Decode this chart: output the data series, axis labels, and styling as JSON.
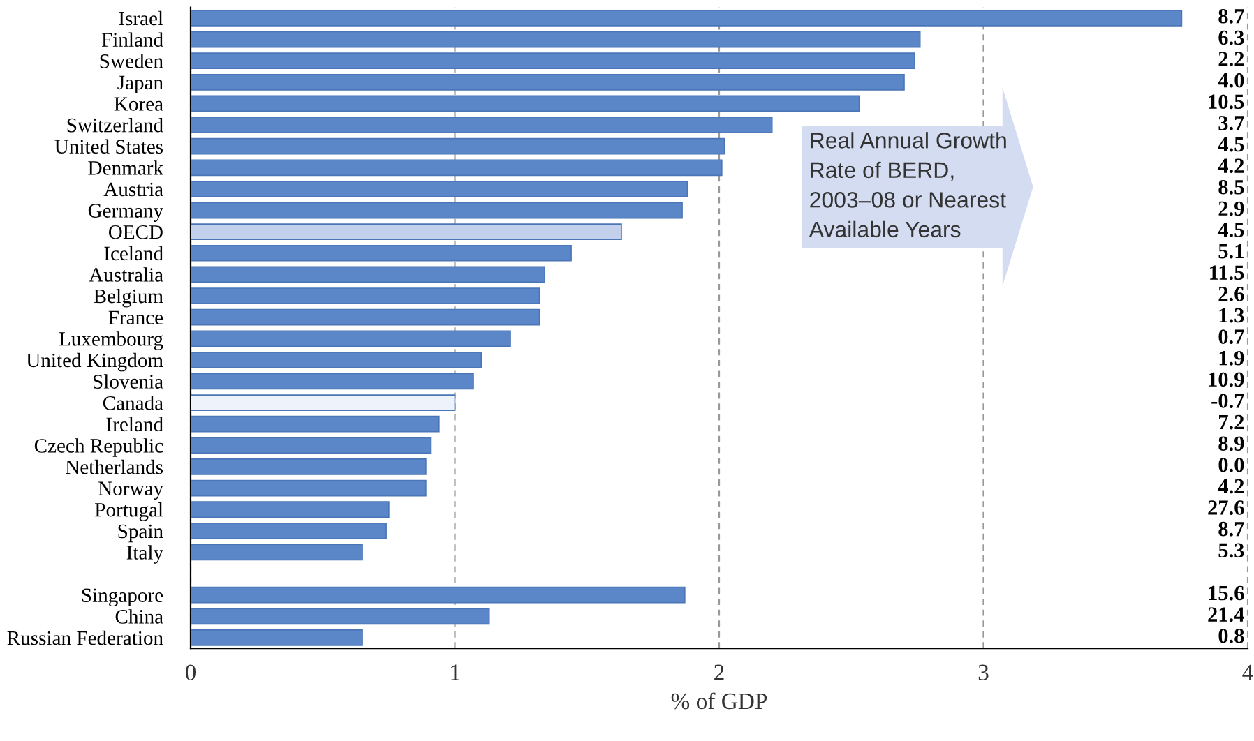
{
  "chart_data": {
    "type": "bar",
    "orientation": "horizontal",
    "xlabel": "% of GDP",
    "categories": [
      "Israel",
      "Finland",
      "Sweden",
      "Japan",
      "Korea",
      "Switzerland",
      "United States",
      "Denmark",
      "Austria",
      "Germany",
      "OECD",
      "Iceland",
      "Australia",
      "Belgium",
      "France",
      "Luxembourg",
      "United Kingdom",
      "Slovenia",
      "Canada",
      "Ireland",
      "Czech Republic",
      "Netherlands",
      "Norway",
      "Portugal",
      "Spain",
      "Italy",
      null,
      "Singapore",
      "China",
      "Russian Federation"
    ],
    "values": [
      3.75,
      2.76,
      2.74,
      2.7,
      2.53,
      2.2,
      2.02,
      2.01,
      1.88,
      1.86,
      1.63,
      1.44,
      1.34,
      1.32,
      1.32,
      1.21,
      1.1,
      1.07,
      1.0,
      0.94,
      0.91,
      0.89,
      0.89,
      0.75,
      0.74,
      0.65,
      null,
      1.87,
      1.13,
      0.65
    ],
    "colors": [
      "#5b87c8",
      "#5b87c8",
      "#5b87c8",
      "#5b87c8",
      "#5b87c8",
      "#5b87c8",
      "#5b87c8",
      "#5b87c8",
      "#5b87c8",
      "#5b87c8",
      "#c3d0ec",
      "#5b87c8",
      "#5b87c8",
      "#5b87c8",
      "#5b87c8",
      "#5b87c8",
      "#5b87c8",
      "#5b87c8",
      "#eef2fa",
      "#5b87c8",
      "#5b87c8",
      "#5b87c8",
      "#5b87c8",
      "#5b87c8",
      "#5b87c8",
      "#5b87c8",
      null,
      "#5b87c8",
      "#5b87c8",
      "#5b87c8"
    ],
    "xlim": [
      0,
      4
    ],
    "xticks": [
      0,
      1,
      2,
      3,
      4
    ],
    "grid": "x",
    "annotations": [
      "Real Annual Growth\nRate of BERD,\n2003–08 or Nearest\nAvailable Years",
      "8.7",
      "6.3",
      "2.2",
      "4.0",
      "10.5",
      "3.7",
      "4.5",
      "4.2",
      "8.5",
      "2.9",
      "4.5",
      "5.1",
      "11.5",
      "2.6",
      "1.3",
      "0.7",
      "1.9",
      "10.9",
      "-0.7",
      "7.2",
      "8.9",
      "0.0",
      "4.2",
      "27.6",
      "8.7",
      "5.3",
      "15.6",
      "21.4",
      "0.8"
    ]
  }
}
